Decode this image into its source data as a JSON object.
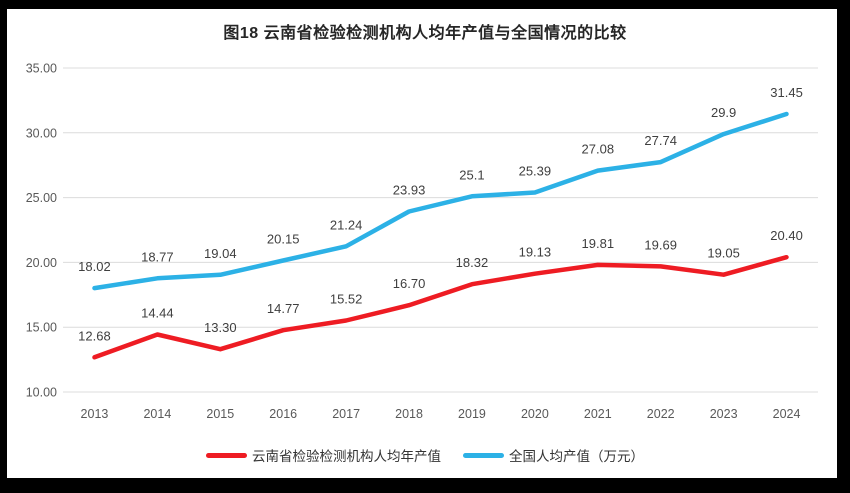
{
  "frame": {
    "background": "#000000",
    "canvas_background": "#ffffff"
  },
  "chart_data": {
    "type": "line",
    "title": "图18 云南省检验检测机构人均年产值与全国情况的比较",
    "categories": [
      "2013",
      "2014",
      "2015",
      "2016",
      "2017",
      "2018",
      "2019",
      "2020",
      "2021",
      "2022",
      "2023",
      "2024"
    ],
    "series": [
      {
        "name": "云南省检验检测机构人均年产值",
        "color": "#ee1c23",
        "values": [
          12.68,
          14.44,
          13.3,
          14.77,
          15.52,
          16.7,
          18.32,
          19.13,
          19.81,
          19.69,
          19.05,
          20.4
        ],
        "labels": [
          "12.68",
          "14.44",
          "13.30",
          "14.77",
          "15.52",
          "16.70",
          "18.32",
          "19.13",
          "19.81",
          "19.69",
          "19.05",
          "20.40"
        ]
      },
      {
        "name": "全国人均产值（万元）",
        "color": "#2cb1e6",
        "values": [
          18.02,
          18.77,
          19.04,
          20.15,
          21.24,
          23.93,
          25.1,
          25.39,
          27.08,
          27.74,
          29.9,
          31.45
        ],
        "labels": [
          "18.02",
          "18.77",
          "19.04",
          "20.15",
          "21.24",
          "23.93",
          "25.1",
          "25.39",
          "27.08",
          "27.74",
          "29.9",
          "31.45"
        ]
      }
    ],
    "ylim": [
      10,
      35
    ],
    "ytick_step": 5,
    "ytick_labels": [
      "10.00",
      "15.00",
      "20.00",
      "25.00",
      "30.00",
      "35.00"
    ],
    "xlabel": "",
    "ylabel": "",
    "grid": true,
    "legend_position": "bottom",
    "colors": {
      "grid_line": "#dcdcdc",
      "axis_text": "#595959",
      "data_label_text": "#3f3f3f",
      "title_text": "#262626"
    }
  }
}
